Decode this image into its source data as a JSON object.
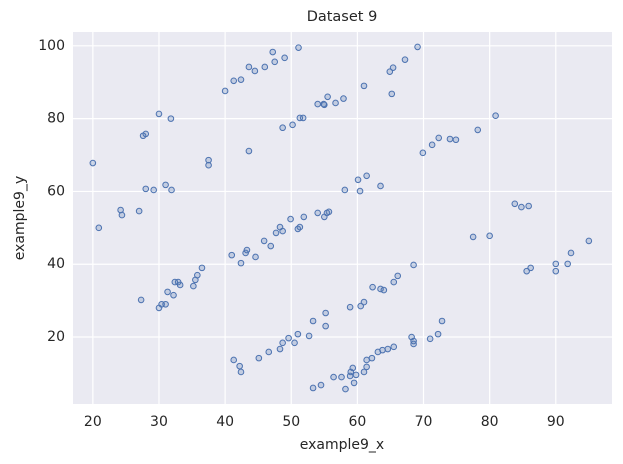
{
  "chart_data": {
    "type": "scatter",
    "title": "Dataset 9",
    "x_label": "example9_x",
    "y_label": "example9_y",
    "x": [
      40,
      41.3,
      42.4,
      43.6,
      44.5,
      46,
      47.2,
      47.5,
      49,
      51.1,
      65.2,
      64.9,
      65.4,
      67.2,
      69.1,
      56.7,
      61,
      54,
      54.9,
      55,
      55.5,
      57.9,
      51.3,
      51.8,
      50.2,
      48.7,
      30,
      31.8,
      27.6,
      28,
      43.6,
      37.5,
      37.5,
      20,
      28,
      29.2,
      31,
      31.9,
      24.2,
      24.4,
      27,
      20.9,
      27.3,
      30,
      30.4,
      31,
      31.3,
      32.2,
      32.4,
      32.9,
      33.2,
      35.2,
      35.5,
      35.8,
      36.5,
      41,
      42.4,
      43.1,
      43.3,
      44.6,
      45.9,
      46.9,
      47.7,
      48.3,
      48.7,
      49.9,
      51,
      51.3,
      51.9,
      54,
      55,
      55.4,
      55.7,
      58.1,
      60.1,
      60.4,
      61.4,
      63.5,
      69.9,
      71.3,
      72.3,
      74,
      74.9,
      78.2,
      80.9,
      77.5,
      80,
      83.8,
      84.8,
      85.9,
      85.6,
      86.2,
      90,
      90,
      91.8,
      92.3,
      95,
      41.3,
      42.2,
      42.4,
      45.1,
      46.6,
      48.3,
      48.7,
      49.6,
      50.5,
      51,
      52.7,
      53.3,
      55.2,
      55.2,
      53.3,
      54.5,
      56.4,
      57.6,
      58.2,
      58.9,
      59,
      59.3,
      59.5,
      59.8,
      61,
      61.4,
      61.4,
      62.2,
      63.1,
      63.8,
      64.6,
      65.5,
      58.9,
      60.5,
      61,
      62.3,
      63.5,
      64,
      65.5,
      66.1,
      68.5,
      68.2,
      68.5,
      68.5,
      71,
      72.2,
      72.8
    ],
    "values": [
      87.6,
      90.4,
      90.7,
      94.2,
      93.1,
      94.2,
      98.3,
      95.6,
      96.7,
      99.5,
      86.8,
      92.9,
      94,
      96.2,
      99.7,
      84.3,
      89,
      84,
      84,
      83.8,
      86,
      85.5,
      80.2,
      80.2,
      78.3,
      77.5,
      81.3,
      80,
      75.3,
      75.8,
      71.1,
      68.6,
      67.2,
      67.8,
      60.7,
      60.4,
      61.8,
      60.4,
      54.9,
      53.5,
      54.6,
      50,
      30.2,
      28,
      29,
      29,
      32.4,
      31.5,
      35.1,
      35.1,
      34.3,
      34,
      35.7,
      37,
      39,
      42.5,
      40.3,
      43.1,
      43.9,
      42,
      46.4,
      45,
      48.6,
      50.2,
      49.1,
      52.4,
      49.7,
      50.2,
      53,
      54.1,
      53,
      54.1,
      54.4,
      60.4,
      63.2,
      60.1,
      64.3,
      61.5,
      70.6,
      72.8,
      74.7,
      74.4,
      74.2,
      76.9,
      80.8,
      47.5,
      47.8,
      56.6,
      55.7,
      56,
      38.1,
      39,
      40.1,
      38.1,
      40.1,
      43.1,
      46.4,
      13.7,
      12,
      10.4,
      14.2,
      15.9,
      16.7,
      18.4,
      19.7,
      18.4,
      20.8,
      20.3,
      24.4,
      26.6,
      23,
      6,
      6.8,
      9,
      9,
      5.7,
      9.3,
      10.4,
      11.5,
      7.4,
      9.6,
      10.4,
      11.8,
      13.7,
      14.2,
      15.9,
      16.4,
      16.7,
      17.3,
      28.2,
      28.5,
      29.6,
      33.7,
      33.2,
      32.9,
      35.1,
      36.8,
      39.8,
      20,
      18.9,
      18.1,
      19.5,
      20.8,
      24.4
    ],
    "color": "#4c72b0",
    "xlim": [
      17,
      98.5
    ],
    "ylim": [
      1.6,
      103.8
    ],
    "xticks": [
      20,
      30,
      40,
      50,
      60,
      70,
      80,
      90
    ],
    "yticks": [
      20,
      40,
      60,
      80,
      100
    ],
    "grid": true
  }
}
